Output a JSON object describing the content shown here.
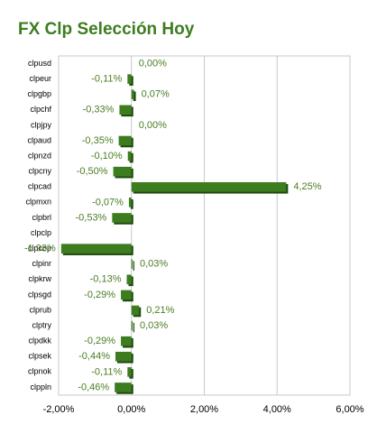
{
  "chart_data": {
    "type": "bar",
    "orientation": "horizontal",
    "title": "FX Clp Selección Hoy",
    "categories": [
      "clpusd",
      "clpeur",
      "clpgbp",
      "clpchf",
      "clpjpy",
      "clpaud",
      "clpnzd",
      "clpcny",
      "clpcad",
      "clpmxn",
      "clpbrl",
      "clpclp",
      "clpcop",
      "clpinr",
      "clpkrw",
      "clpsgd",
      "clprub",
      "clptry",
      "clpdkk",
      "clpsek",
      "clpnok",
      "clppln"
    ],
    "values": [
      0.0,
      -0.11,
      0.07,
      -0.33,
      0.0,
      -0.35,
      -0.1,
      -0.5,
      4.25,
      -0.07,
      -0.53,
      null,
      -1.93,
      0.03,
      -0.13,
      -0.29,
      0.21,
      0.03,
      -0.29,
      -0.44,
      -0.11,
      -0.46
    ],
    "value_labels": [
      "0,00%",
      "-0,11%",
      "0,07%",
      "-0,33%",
      "0,00%",
      "-0,35%",
      "-0,10%",
      "-0,50%",
      "4,25%",
      "-0,07%",
      "-0,53%",
      null,
      "-1,93%",
      "0,03%",
      "-0,13%",
      "-0,29%",
      "0,21%",
      "0,03%",
      "-0,29%",
      "-0,44%",
      "-0,11%",
      "-0,46%"
    ],
    "color": "#3d7d1f",
    "label_color": "#4a7d23",
    "xlim": [
      -2,
      6
    ],
    "xticks": [
      {
        "value": -2,
        "label": "-2,00%"
      },
      {
        "value": 0,
        "label": "0,00%"
      },
      {
        "value": 2,
        "label": "2,00%"
      },
      {
        "value": 4,
        "label": "4,00%"
      },
      {
        "value": 6,
        "label": "6,00%"
      }
    ],
    "grid": true
  }
}
